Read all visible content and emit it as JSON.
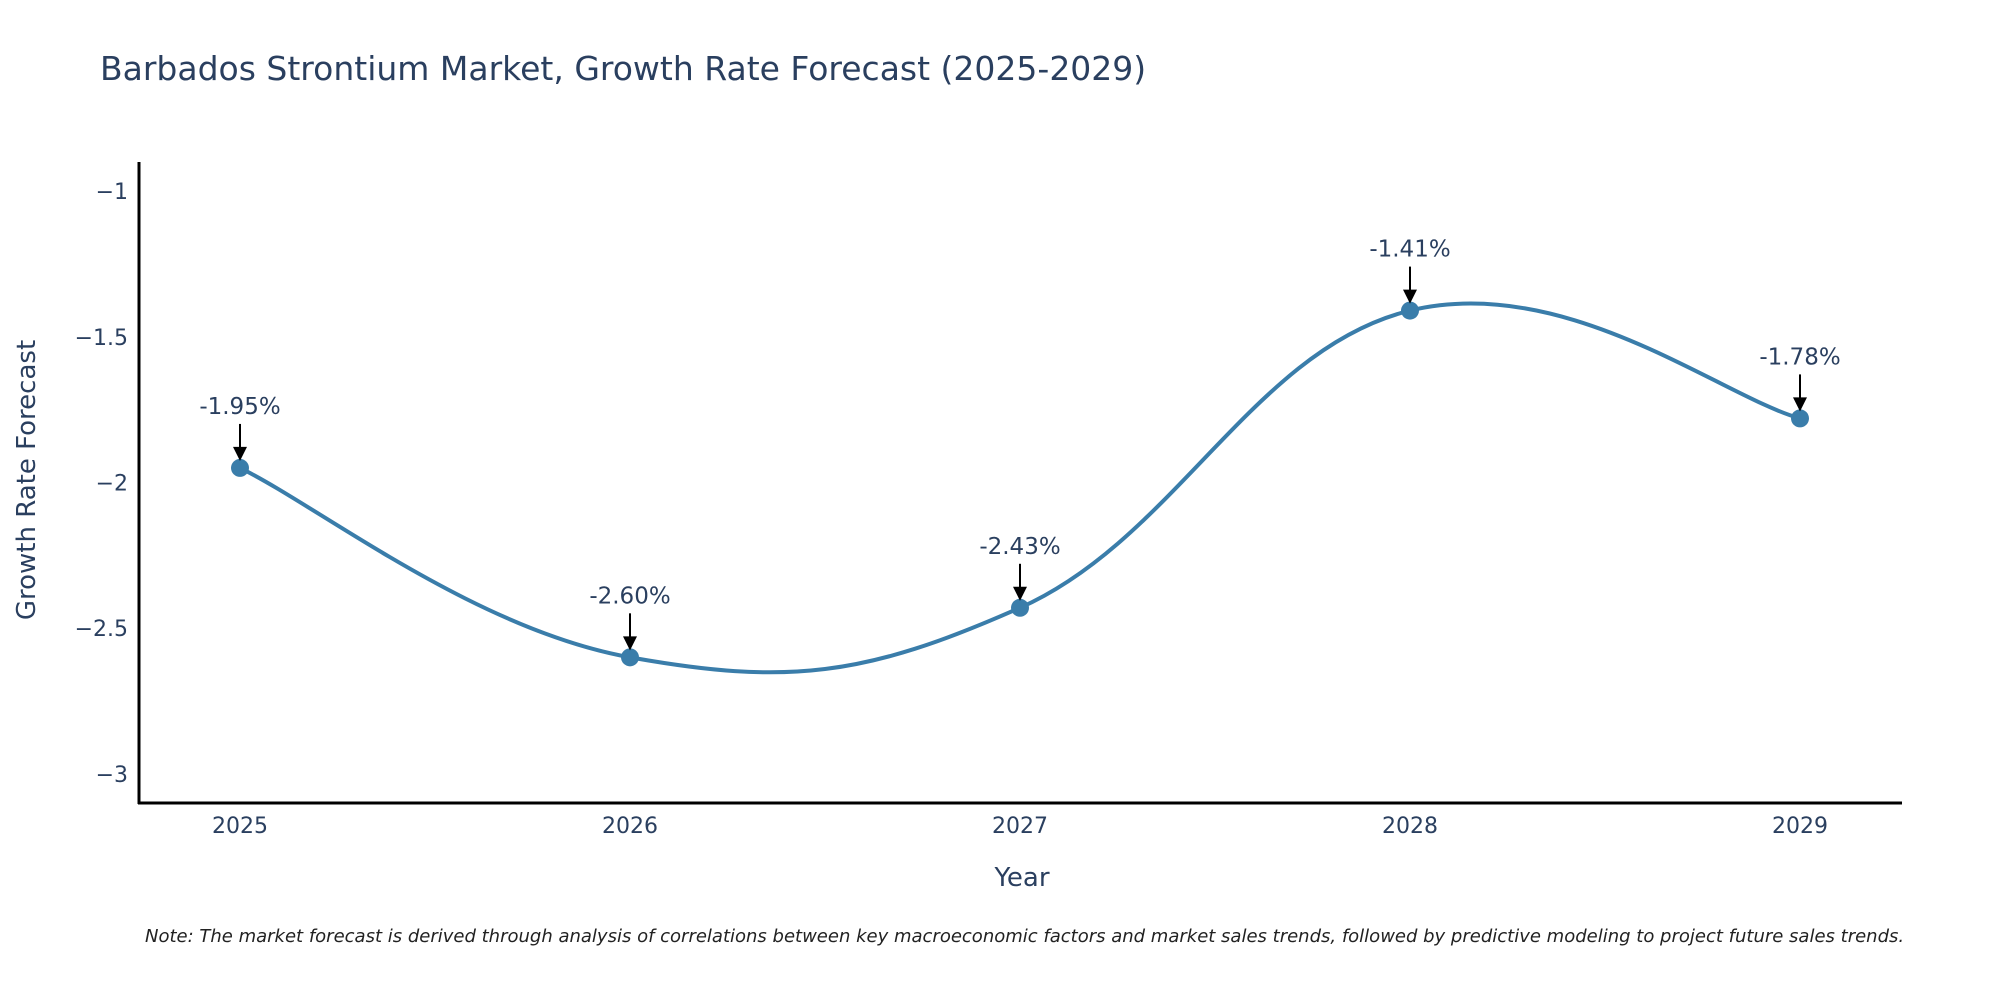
{
  "chart_data": {
    "type": "line",
    "title": "Barbados Strontium Market, Growth Rate Forecast (2025-2029)",
    "xlabel": "Year",
    "ylabel": "Growth Rate Forecast",
    "x": [
      "2025",
      "2026",
      "2027",
      "2028",
      "2029"
    ],
    "values": [
      -1.95,
      -2.6,
      -2.43,
      -1.41,
      -1.78
    ],
    "annotations": [
      "-1.95%",
      "-2.60%",
      "-2.43%",
      "-1.41%",
      "-1.78%"
    ],
    "ylim": [
      -3.1,
      -0.9
    ],
    "yticks": [
      -1,
      -1.5,
      -2,
      -2.5,
      -3
    ],
    "ytick_labels": [
      "−1",
      "−1.5",
      "−2",
      "−2.5",
      "−3"
    ],
    "line_color": "#3a7daa",
    "grid": false,
    "legend": "none",
    "note": "Note: The market forecast is derived through analysis of correlations between key macroeconomic factors and market sales trends, followed by predictive modeling to project future sales trends."
  }
}
